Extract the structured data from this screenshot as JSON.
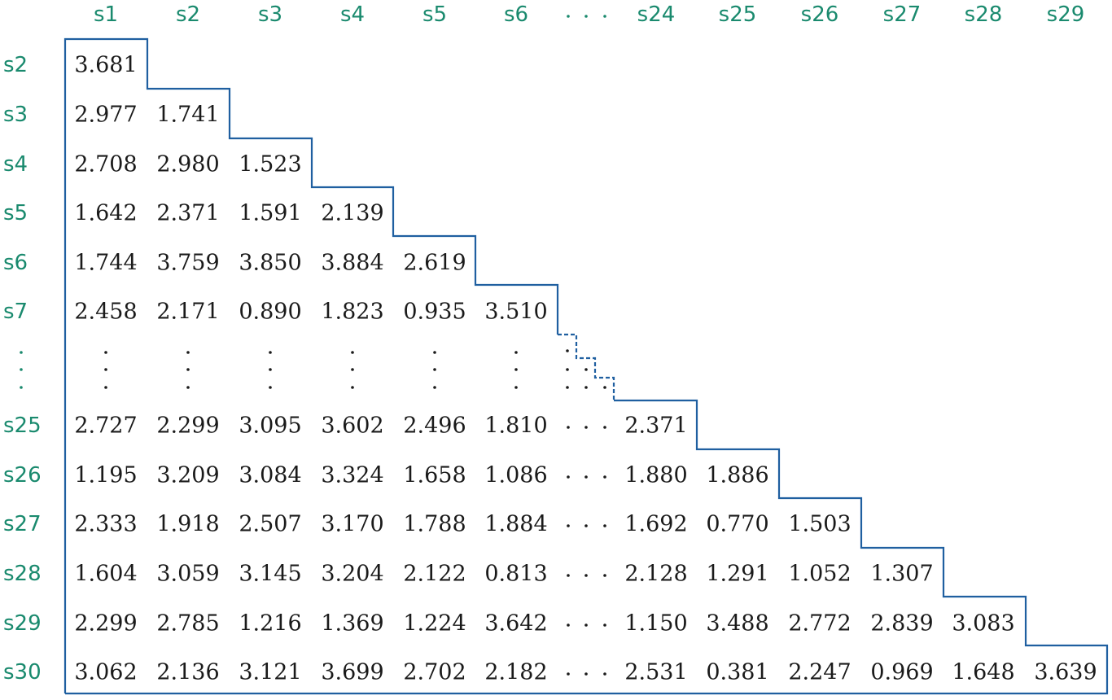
{
  "columns": [
    "s1",
    "s2",
    "s3",
    "s4",
    "s5",
    "s6",
    "s24",
    "s25",
    "s26",
    "s27",
    "s28",
    "s29"
  ],
  "top_rows": [
    {
      "label": "s2",
      "values": [
        "3.681"
      ]
    },
    {
      "label": "s3",
      "values": [
        "2.977",
        "1.741"
      ]
    },
    {
      "label": "s4",
      "values": [
        "2.708",
        "2.980",
        "1.523"
      ]
    },
    {
      "label": "s5",
      "values": [
        "1.642",
        "2.371",
        "1.591",
        "2.139"
      ]
    },
    {
      "label": "s6",
      "values": [
        "1.744",
        "3.759",
        "3.850",
        "3.884",
        "2.619"
      ]
    },
    {
      "label": "s7",
      "values": [
        "2.458",
        "2.171",
        "0.890",
        "1.823",
        "0.935",
        "3.510"
      ]
    }
  ],
  "bottom_rows": [
    {
      "label": "s25",
      "left": [
        "2.727",
        "2.299",
        "3.095",
        "3.602",
        "2.496",
        "1.810"
      ],
      "right": [
        "2.371"
      ]
    },
    {
      "label": "s26",
      "left": [
        "1.195",
        "3.209",
        "3.084",
        "3.324",
        "1.658",
        "1.086"
      ],
      "right": [
        "1.880",
        "1.886"
      ]
    },
    {
      "label": "s27",
      "left": [
        "2.333",
        "1.918",
        "2.507",
        "3.170",
        "1.788",
        "1.884"
      ],
      "right": [
        "1.692",
        "0.770",
        "1.503"
      ]
    },
    {
      "label": "s28",
      "left": [
        "1.604",
        "3.059",
        "3.145",
        "3.204",
        "2.122",
        "0.813"
      ],
      "right": [
        "2.128",
        "1.291",
        "1.052",
        "1.307"
      ]
    },
    {
      "label": "s29",
      "left": [
        "2.299",
        "2.785",
        "1.216",
        "1.369",
        "1.224",
        "3.642"
      ],
      "right": [
        "1.150",
        "3.488",
        "2.772",
        "2.839",
        "3.083"
      ]
    },
    {
      "label": "s30",
      "left": [
        "3.062",
        "2.136",
        "3.121",
        "3.699",
        "2.702",
        "2.182"
      ],
      "right": [
        "2.531",
        "0.381",
        "2.247",
        "0.969",
        "1.648",
        "3.639"
      ]
    }
  ],
  "colors": {
    "label": "#1a8a6e",
    "value": "#1a1a1a",
    "border": "#1f5fa0"
  }
}
